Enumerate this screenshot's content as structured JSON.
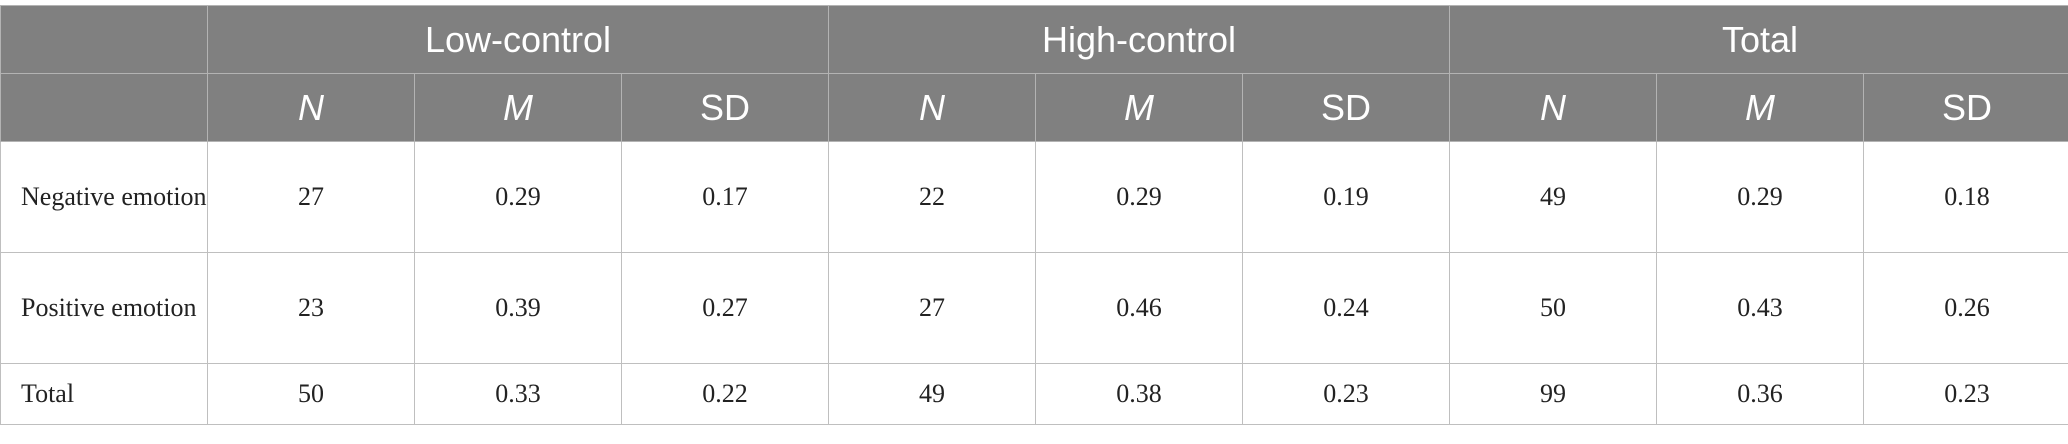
{
  "groups": [
    "Low-control",
    "High-control",
    "Total"
  ],
  "stats": [
    "N",
    "M",
    "SD"
  ],
  "rows": [
    {
      "label": "Negative emotion",
      "values": [
        "27",
        "0.29",
        "0.17",
        "22",
        "0.29",
        "0.19",
        "49",
        "0.29",
        "0.18"
      ]
    },
    {
      "label": "Positive emotion",
      "values": [
        "23",
        "0.39",
        "0.27",
        "27",
        "0.46",
        "0.24",
        "50",
        "0.43",
        "0.26"
      ]
    },
    {
      "label": "Total",
      "values": [
        "50",
        "0.33",
        "0.22",
        "49",
        "0.38",
        "0.23",
        "99",
        "0.36",
        "0.23"
      ]
    }
  ]
}
